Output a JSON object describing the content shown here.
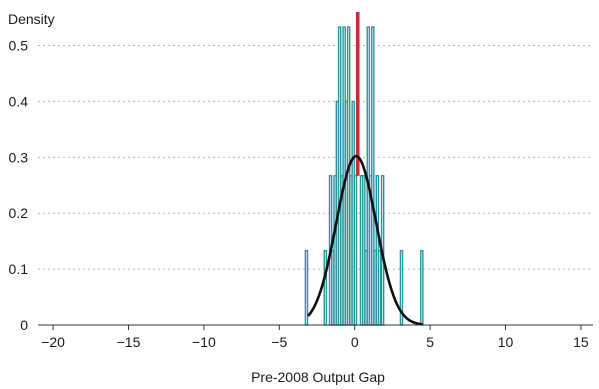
{
  "chart_data": {
    "type": "bar",
    "ylabel": "Density",
    "xlabel": "Pre-2008 Output Gap",
    "xlim": [
      -21,
      15.8
    ],
    "ylim": [
      0,
      0.56
    ],
    "xticks": [
      -20,
      -15,
      -10,
      -5,
      0,
      5,
      10,
      15
    ],
    "yticks": [
      0,
      0.1,
      0.2,
      0.3,
      0.4,
      0.5
    ],
    "ytick_labels": [
      "0",
      "0.1",
      "0.2",
      "0.3",
      "0.4",
      "0.5"
    ],
    "xtick_labels": [
      "−20",
      "−15",
      "−10",
      "−5",
      "0",
      "5",
      "10",
      "15"
    ],
    "grid": {
      "horizontal": true,
      "style": "dotted"
    },
    "series": [
      {
        "type": "histogram",
        "bar_width": 0.14,
        "color": "#2a93a0",
        "bars": [
          {
            "x": -3.2,
            "y": 0.133
          },
          {
            "x": -1.95,
            "y": 0.133
          },
          {
            "x": -1.6,
            "y": 0.267
          },
          {
            "x": -1.45,
            "y": 0.133
          },
          {
            "x": -1.3,
            "y": 0.267
          },
          {
            "x": -1.15,
            "y": 0.4
          },
          {
            "x": -1.0,
            "y": 0.533
          },
          {
            "x": -0.85,
            "y": 0.267
          },
          {
            "x": -0.7,
            "y": 0.533
          },
          {
            "x": -0.55,
            "y": 0.4
          },
          {
            "x": -0.4,
            "y": 0.533
          },
          {
            "x": -0.25,
            "y": 0.267
          },
          {
            "x": -0.1,
            "y": 0.4
          },
          {
            "x": 0.05,
            "y": 0.267
          },
          {
            "x": 0.45,
            "y": 0.267
          },
          {
            "x": 0.6,
            "y": 0.267
          },
          {
            "x": 0.75,
            "y": 0.133
          },
          {
            "x": 0.9,
            "y": 0.533
          },
          {
            "x": 1.05,
            "y": 0.267
          },
          {
            "x": 1.2,
            "y": 0.533
          },
          {
            "x": 1.35,
            "y": 0.133
          },
          {
            "x": 1.5,
            "y": 0.267
          },
          {
            "x": 1.65,
            "y": 0.133
          },
          {
            "x": 1.85,
            "y": 0.267
          },
          {
            "x": 3.1,
            "y": 0.133
          },
          {
            "x": 4.45,
            "y": 0.133
          }
        ]
      },
      {
        "type": "marker-bar",
        "color": "#c0303c",
        "x": 0.2,
        "y": 0.56
      },
      {
        "type": "density-curve",
        "color": "#111111",
        "distribution": "normal",
        "mean": 0.1,
        "sd": 1.32,
        "x_range": [
          -3.1,
          4.5
        ]
      }
    ]
  }
}
